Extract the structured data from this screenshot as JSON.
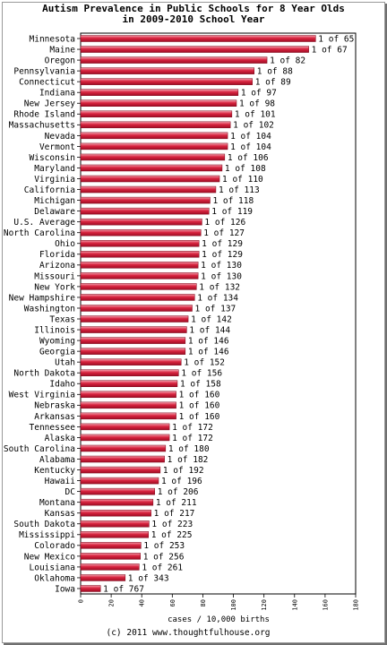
{
  "chart_data": {
    "type": "bar",
    "orientation": "horizontal",
    "title": [
      "Autism Prevalence in Public Schools for 8 Year Olds",
      "in 2009-2010 School Year"
    ],
    "xlabel": "cases / 10,000 births",
    "ylabel": "",
    "xlim": [
      0,
      180
    ],
    "xticks": [
      0,
      20,
      40,
      60,
      80,
      100,
      120,
      140,
      160,
      180
    ],
    "grid": false,
    "legend": "none",
    "bar_color": "#c8102e",
    "footer": "(c) 2011 www.thoughtfulhouse.org",
    "categories": [
      "Minnesota",
      "Maine",
      "Oregon",
      "Pennsylvania",
      "Connecticut",
      "Indiana",
      "New Jersey",
      "Rhode Island",
      "Massachusetts",
      "Nevada",
      "Vermont",
      "Wisconsin",
      "Maryland",
      "Virginia",
      "California",
      "Michigan",
      "Delaware",
      "U.S. Average",
      "North Carolina",
      "Ohio",
      "Florida",
      "Arizona",
      "Missouri",
      "New York",
      "New Hampshire",
      "Washington",
      "Texas",
      "Illinois",
      "Wyoming",
      "Georgia",
      "Utah",
      "North Dakota",
      "Idaho",
      "West Virginia",
      "Nebraska",
      "Arkansas",
      "Tennessee",
      "Alaska",
      "South Carolina",
      "Alabama",
      "Kentucky",
      "Hawaii",
      "DC",
      "Montana",
      "Kansas",
      "South Dakota",
      "Mississippi",
      "Colorado",
      "New Mexico",
      "Louisiana",
      "Oklahoma",
      "Iowa"
    ],
    "values": [
      153.8,
      149.3,
      122.0,
      113.6,
      112.4,
      103.1,
      102.0,
      99.0,
      98.0,
      96.2,
      96.2,
      94.3,
      92.6,
      90.9,
      88.5,
      84.7,
      84.0,
      79.4,
      78.7,
      77.5,
      77.5,
      76.9,
      76.9,
      75.8,
      74.6,
      73.0,
      70.4,
      69.4,
      68.5,
      68.5,
      65.8,
      64.1,
      63.3,
      62.5,
      62.5,
      62.5,
      58.1,
      58.1,
      55.6,
      54.9,
      52.1,
      51.0,
      48.5,
      47.4,
      46.1,
      44.8,
      44.4,
      39.5,
      39.1,
      38.3,
      29.2,
      13.0
    ],
    "data_labels": [
      "1 of 65",
      "1 of 67",
      "1 of 82",
      "1 of 88",
      "1 of 89",
      "1 of 97",
      "1 of 98",
      "1 of 101",
      "1 of 102",
      "1 of 104",
      "1 of 104",
      "1 of 106",
      "1 of 108",
      "1 of 110",
      "1 of 113",
      "1 of 118",
      "1 of 119",
      "1 of 126",
      "1 of 127",
      "1 of 129",
      "1 of 129",
      "1 of 130",
      "1 of 130",
      "1 of 132",
      "1 of 134",
      "1 of 137",
      "1 of 142",
      "1 of 144",
      "1 of 146",
      "1 of 146",
      "1 of 152",
      "1 of 156",
      "1 of 158",
      "1 of 160",
      "1 of 160",
      "1 of 160",
      "1 of 172",
      "1 of 172",
      "1 of 180",
      "1 of 182",
      "1 of 192",
      "1 of 196",
      "1 of 206",
      "1 of 211",
      "1 of 217",
      "1 of 223",
      "1 of 225",
      "1 of 253",
      "1 of 256",
      "1 of 261",
      "1 of 343",
      "1 of 767"
    ]
  }
}
